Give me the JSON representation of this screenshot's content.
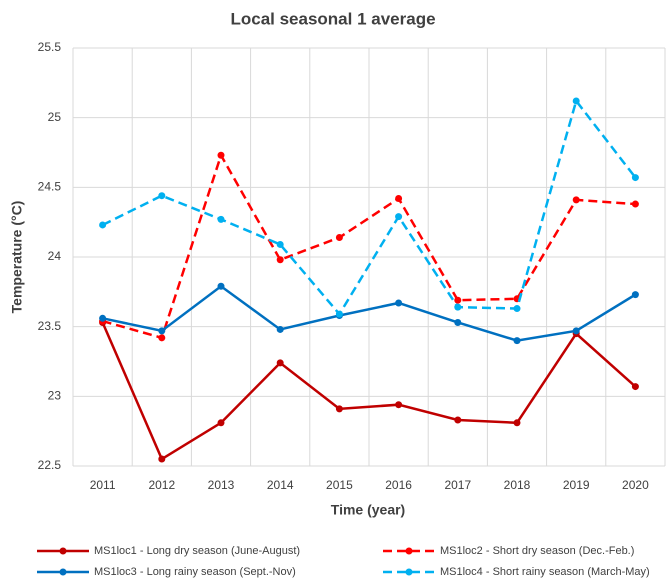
{
  "chart_data": {
    "type": "line",
    "title": "Local seasonal 1 average",
    "x_label": "Time (year)",
    "y_label": "Temperature (°C)",
    "categories": [
      "2011",
      "2012",
      "2013",
      "2014",
      "2015",
      "2016",
      "2017",
      "2018",
      "2019",
      "2020"
    ],
    "ylim": [
      22.5,
      25.5
    ],
    "yticks": [
      22.5,
      23,
      23.5,
      24,
      24.5,
      25,
      25.5
    ],
    "grid": true,
    "series": [
      {
        "name": "MS1loc1 - Long dry season (June-August)",
        "color": "#c00000",
        "dashed": false,
        "values": [
          23.53,
          22.55,
          22.81,
          23.24,
          22.91,
          22.94,
          22.83,
          22.81,
          23.45,
          23.07
        ]
      },
      {
        "name": "MS1loc2 - Short dry season (Dec.-Feb.)",
        "color": "#ff0000",
        "dashed": true,
        "values": [
          23.54,
          23.42,
          24.73,
          23.98,
          24.14,
          24.42,
          23.69,
          23.7,
          24.41,
          24.38
        ]
      },
      {
        "name": "MS1loc3 - Long rainy season (Sept.-Nov)",
        "color": "#0070c0",
        "dashed": false,
        "values": [
          23.56,
          23.47,
          23.79,
          23.48,
          23.58,
          23.67,
          23.53,
          23.4,
          23.47,
          23.73
        ]
      },
      {
        "name": "MS1loc4 - Short rainy season (March-May)",
        "color": "#00b0f0",
        "dashed": true,
        "values": [
          24.23,
          24.44,
          24.27,
          24.09,
          23.59,
          24.29,
          23.64,
          23.63,
          25.12,
          24.57
        ]
      }
    ]
  }
}
